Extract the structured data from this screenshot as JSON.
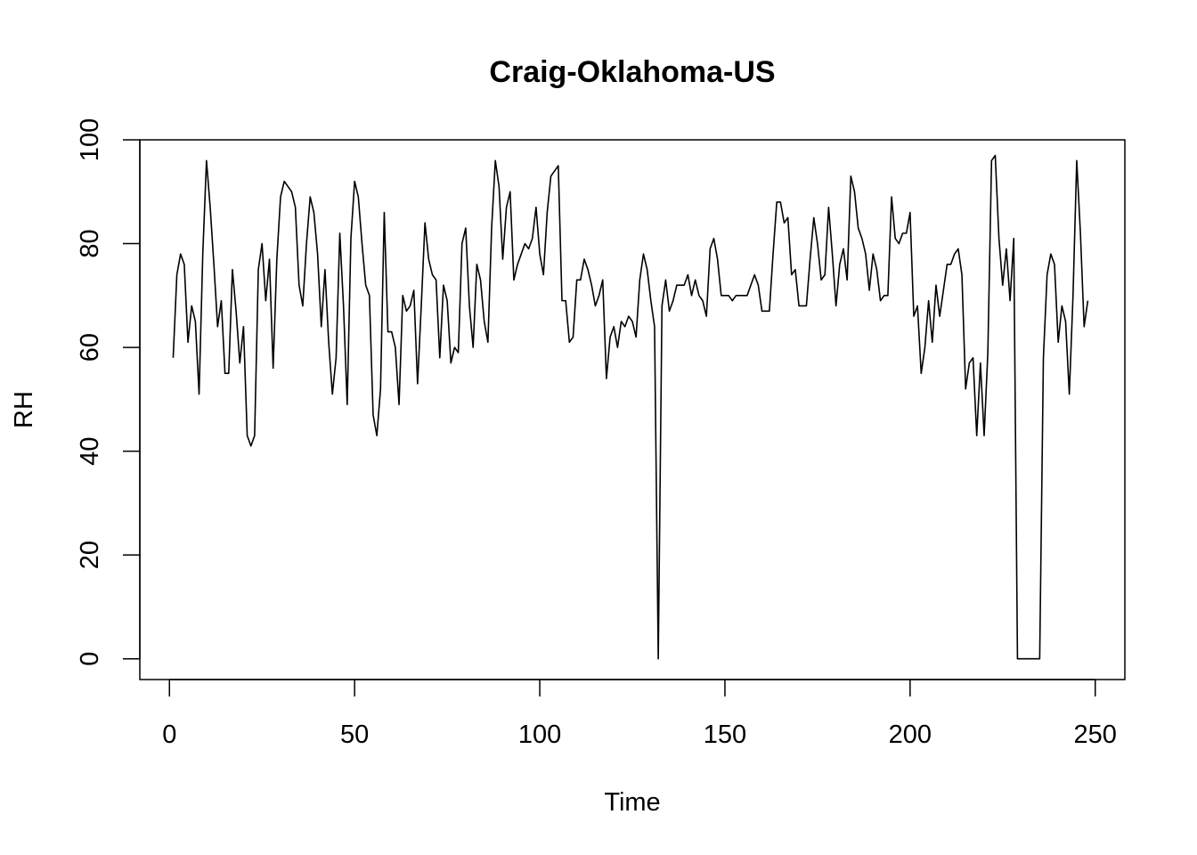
{
  "chart_data": {
    "type": "line",
    "title": "Craig-Oklahoma-US",
    "xlabel": "Time",
    "ylabel": "RH",
    "xlim": [
      -8,
      258
    ],
    "ylim": [
      -4,
      100
    ],
    "x_ticks": [
      0,
      50,
      100,
      150,
      200,
      250
    ],
    "y_ticks": [
      0,
      20,
      40,
      60,
      80,
      100
    ],
    "x_tick_labels": [
      "0",
      "50",
      "100",
      "150",
      "200",
      "250"
    ],
    "y_tick_labels": [
      "0",
      "20",
      "40",
      "60",
      "80",
      "100"
    ],
    "grid": false,
    "legend": "none",
    "line_color": "#000000",
    "series": [
      {
        "values": [
          58,
          74,
          78,
          76,
          61,
          68,
          65,
          51,
          78,
          96,
          87,
          76,
          64,
          69,
          55,
          55,
          75,
          67,
          57,
          64,
          43,
          41,
          43,
          75,
          80,
          69,
          77,
          56,
          77,
          89,
          92,
          91,
          90,
          87,
          72,
          68,
          80,
          89,
          86,
          78,
          64,
          75,
          61,
          51,
          58,
          82,
          68,
          49,
          81,
          92,
          89,
          80,
          72,
          70,
          47,
          43,
          52,
          86,
          63,
          63,
          60,
          49,
          70,
          67,
          68,
          71,
          53,
          68,
          84,
          77,
          74,
          73,
          58,
          72,
          69,
          57,
          60,
          59,
          80,
          83,
          68,
          60,
          76,
          73,
          65,
          61,
          83,
          96,
          91,
          77,
          87,
          90,
          73,
          76,
          78,
          80,
          79,
          81,
          87,
          78,
          74,
          86,
          93,
          94,
          95,
          69,
          69,
          61,
          62,
          73,
          73,
          77,
          75,
          72,
          68,
          70,
          73,
          54,
          62,
          64,
          60,
          65,
          64,
          66,
          65,
          62,
          73,
          78,
          75,
          69,
          64,
          0,
          68,
          73,
          67,
          69,
          72,
          72,
          72,
          74,
          70,
          73,
          70,
          69,
          66,
          79,
          81,
          77,
          70,
          70,
          70,
          69,
          70,
          70,
          70,
          70,
          72,
          74,
          72,
          67,
          67,
          67,
          78,
          88,
          88,
          84,
          85,
          74,
          75,
          68,
          68,
          68,
          77,
          85,
          80,
          73,
          74,
          87,
          78,
          68,
          76,
          79,
          73,
          93,
          90,
          83,
          81,
          78,
          71,
          78,
          75,
          69,
          70,
          70,
          89,
          81,
          80,
          82,
          82,
          86,
          66,
          68,
          55,
          60,
          69,
          61,
          72,
          66,
          71,
          76,
          76,
          78,
          79,
          74,
          52,
          57,
          58,
          43,
          57,
          43,
          59,
          96,
          97,
          81,
          72,
          79,
          69,
          81,
          0,
          0,
          0,
          0,
          0,
          0,
          0,
          58,
          74,
          78,
          76,
          61,
          68,
          65,
          51,
          70,
          96,
          82,
          64,
          69
        ]
      }
    ]
  }
}
